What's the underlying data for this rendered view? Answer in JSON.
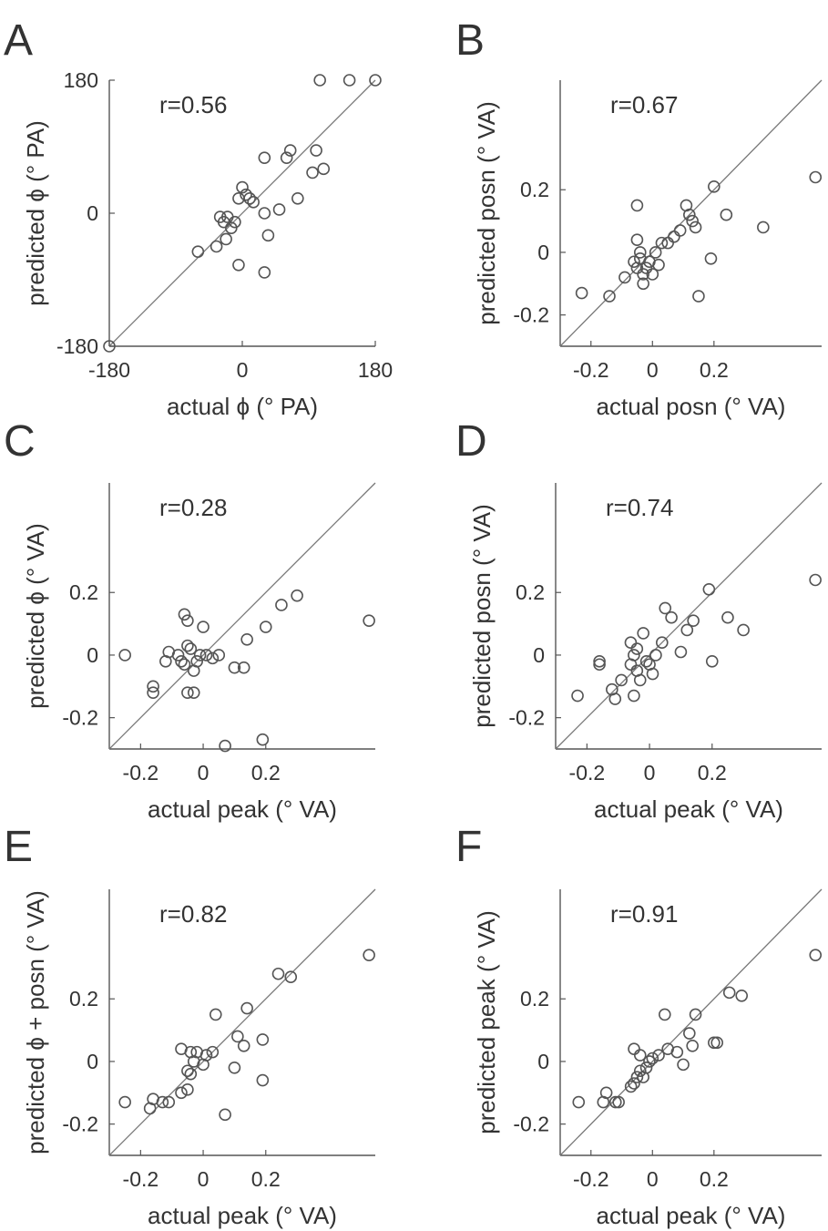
{
  "chart_data": [
    {
      "type": "scatter",
      "panel_label": "A",
      "xlabel": "actual ϕ (° PA)",
      "ylabel": "predicted ϕ (° PA)",
      "annotation": "r=0.56",
      "xlim": [
        -180,
        180
      ],
      "ylim": [
        -180,
        180
      ],
      "xticks": [
        -180,
        0,
        180
      ],
      "xtick_labels": [
        "-180",
        "0",
        "180"
      ],
      "yticks": [
        -180,
        0,
        180
      ],
      "ytick_labels": [
        "-180",
        "0",
        "180"
      ],
      "identity_line": true,
      "points": [
        [
          -180,
          -180
        ],
        [
          -60,
          -52
        ],
        [
          -35,
          -45
        ],
        [
          -22,
          -35
        ],
        [
          -30,
          -5
        ],
        [
          -20,
          -5
        ],
        [
          -25,
          -12
        ],
        [
          -15,
          -20
        ],
        [
          -10,
          -12
        ],
        [
          -5,
          -70
        ],
        [
          -5,
          20
        ],
        [
          0,
          35
        ],
        [
          5,
          25
        ],
        [
          10,
          20
        ],
        [
          15,
          15
        ],
        [
          30,
          0
        ],
        [
          30,
          75
        ],
        [
          35,
          -30
        ],
        [
          30,
          -80
        ],
        [
          50,
          5
        ],
        [
          60,
          75
        ],
        [
          65,
          85
        ],
        [
          75,
          20
        ],
        [
          95,
          55
        ],
        [
          100,
          85
        ],
        [
          105,
          180
        ],
        [
          110,
          60
        ],
        [
          145,
          180
        ],
        [
          180,
          180
        ]
      ]
    },
    {
      "type": "scatter",
      "panel_label": "B",
      "xlabel": "actual posn (° VA)",
      "ylabel": "predicted posn (° VA)",
      "annotation": "r=0.67",
      "xlim": [
        -0.3,
        0.55
      ],
      "ylim": [
        -0.3,
        0.55
      ],
      "xticks": [
        -0.2,
        0,
        0.2
      ],
      "xtick_labels": [
        "-0.2",
        "0",
        "0.2"
      ],
      "yticks": [
        -0.2,
        0,
        0.2
      ],
      "ytick_labels": [
        "-0.2",
        "0",
        "0.2"
      ],
      "identity_line": true,
      "points": [
        [
          -0.23,
          -0.13
        ],
        [
          -0.14,
          -0.14
        ],
        [
          -0.09,
          -0.08
        ],
        [
          -0.06,
          -0.03
        ],
        [
          -0.05,
          -0.05
        ],
        [
          -0.05,
          0.04
        ],
        [
          -0.05,
          0.15
        ],
        [
          -0.04,
          0.0
        ],
        [
          -0.04,
          -0.02
        ],
        [
          -0.03,
          -0.1
        ],
        [
          -0.03,
          -0.07
        ],
        [
          -0.02,
          -0.05
        ],
        [
          -0.01,
          -0.03
        ],
        [
          0.0,
          -0.07
        ],
        [
          0.02,
          -0.04
        ],
        [
          0.01,
          0.0
        ],
        [
          0.03,
          0.03
        ],
        [
          0.05,
          0.03
        ],
        [
          0.07,
          0.05
        ],
        [
          0.09,
          0.07
        ],
        [
          0.11,
          0.15
        ],
        [
          0.12,
          0.12
        ],
        [
          0.13,
          0.1
        ],
        [
          0.14,
          0.08
        ],
        [
          0.15,
          -0.14
        ],
        [
          0.19,
          -0.02
        ],
        [
          0.2,
          0.21
        ],
        [
          0.24,
          0.12
        ],
        [
          0.36,
          0.08
        ],
        [
          0.53,
          0.24
        ]
      ]
    },
    {
      "type": "scatter",
      "panel_label": "C",
      "xlabel": "actual peak (° VA)",
      "ylabel": "predicted ϕ (° VA)",
      "annotation": "r=0.28",
      "xlim": [
        -0.3,
        0.55
      ],
      "ylim": [
        -0.3,
        0.55
      ],
      "xticks": [
        -0.2,
        0,
        0.2
      ],
      "xtick_labels": [
        "-0.2",
        "0",
        "0.2"
      ],
      "yticks": [
        -0.2,
        0,
        0.2
      ],
      "ytick_labels": [
        "-0.2",
        "0",
        "0.2"
      ],
      "identity_line": true,
      "points": [
        [
          -0.25,
          0.0
        ],
        [
          -0.16,
          -0.1
        ],
        [
          -0.16,
          -0.12
        ],
        [
          -0.12,
          -0.02
        ],
        [
          -0.11,
          0.01
        ],
        [
          -0.08,
          0.0
        ],
        [
          -0.07,
          -0.02
        ],
        [
          -0.06,
          -0.03
        ],
        [
          -0.06,
          0.13
        ],
        [
          -0.05,
          0.11
        ],
        [
          -0.05,
          0.03
        ],
        [
          -0.05,
          -0.12
        ],
        [
          -0.04,
          0.02
        ],
        [
          -0.03,
          -0.12
        ],
        [
          -0.03,
          -0.05
        ],
        [
          -0.02,
          -0.02
        ],
        [
          -0.01,
          0.0
        ],
        [
          0.0,
          0.09
        ],
        [
          0.01,
          0.0
        ],
        [
          0.03,
          -0.01
        ],
        [
          0.05,
          0.0
        ],
        [
          0.07,
          -0.29
        ],
        [
          0.1,
          -0.04
        ],
        [
          0.13,
          -0.04
        ],
        [
          0.14,
          0.05
        ],
        [
          0.19,
          -0.27
        ],
        [
          0.2,
          0.09
        ],
        [
          0.25,
          0.16
        ],
        [
          0.3,
          0.19
        ],
        [
          0.53,
          0.11
        ]
      ]
    },
    {
      "type": "scatter",
      "panel_label": "D",
      "xlabel": "actual peak (° VA)",
      "ylabel": "predicted posn (° VA)",
      "annotation": "r=0.74",
      "xlim": [
        -0.3,
        0.55
      ],
      "ylim": [
        -0.3,
        0.55
      ],
      "xticks": [
        -0.2,
        0,
        0.2
      ],
      "xtick_labels": [
        "-0.2",
        "0",
        "0.2"
      ],
      "yticks": [
        -0.2,
        0,
        0.2
      ],
      "ytick_labels": [
        "-0.2",
        "0",
        "0.2"
      ],
      "identity_line": true,
      "points": [
        [
          -0.23,
          -0.13
        ],
        [
          -0.16,
          -0.03
        ],
        [
          -0.16,
          -0.02
        ],
        [
          -0.12,
          -0.11
        ],
        [
          -0.11,
          -0.14
        ],
        [
          -0.09,
          -0.08
        ],
        [
          -0.06,
          0.04
        ],
        [
          -0.06,
          -0.03
        ],
        [
          -0.05,
          0.0
        ],
        [
          -0.05,
          -0.13
        ],
        [
          -0.04,
          0.02
        ],
        [
          -0.04,
          -0.05
        ],
        [
          -0.03,
          -0.08
        ],
        [
          -0.02,
          0.07
        ],
        [
          -0.01,
          -0.02
        ],
        [
          0.0,
          -0.03
        ],
        [
          0.01,
          -0.06
        ],
        [
          0.02,
          0.0
        ],
        [
          0.04,
          0.04
        ],
        [
          0.05,
          0.15
        ],
        [
          0.07,
          0.12
        ],
        [
          0.1,
          0.01
        ],
        [
          0.12,
          0.08
        ],
        [
          0.14,
          0.11
        ],
        [
          0.19,
          0.21
        ],
        [
          0.2,
          -0.02
        ],
        [
          0.25,
          0.12
        ],
        [
          0.3,
          0.08
        ],
        [
          0.53,
          0.24
        ]
      ]
    },
    {
      "type": "scatter",
      "panel_label": "E",
      "xlabel": "actual peak (° VA)",
      "ylabel": "predicted ϕ + posn (° VA)",
      "annotation": "r=0.82",
      "xlim": [
        -0.3,
        0.55
      ],
      "ylim": [
        -0.3,
        0.55
      ],
      "xticks": [
        -0.2,
        0,
        0.2
      ],
      "xtick_labels": [
        "-0.2",
        "0",
        "0.2"
      ],
      "yticks": [
        -0.2,
        0,
        0.2
      ],
      "ytick_labels": [
        "-0.2",
        "0",
        "0.2"
      ],
      "identity_line": true,
      "points": [
        [
          -0.25,
          -0.13
        ],
        [
          -0.17,
          -0.15
        ],
        [
          -0.16,
          -0.12
        ],
        [
          -0.13,
          -0.13
        ],
        [
          -0.11,
          -0.13
        ],
        [
          -0.07,
          -0.1
        ],
        [
          -0.07,
          0.04
        ],
        [
          -0.05,
          -0.09
        ],
        [
          -0.05,
          -0.03
        ],
        [
          -0.04,
          0.03
        ],
        [
          -0.04,
          -0.04
        ],
        [
          -0.03,
          0.0
        ],
        [
          -0.02,
          0.03
        ],
        [
          0.0,
          -0.01
        ],
        [
          0.01,
          0.02
        ],
        [
          0.03,
          0.03
        ],
        [
          0.04,
          0.15
        ],
        [
          0.07,
          -0.17
        ],
        [
          0.1,
          -0.02
        ],
        [
          0.11,
          0.08
        ],
        [
          0.13,
          0.05
        ],
        [
          0.14,
          0.17
        ],
        [
          0.19,
          0.07
        ],
        [
          0.19,
          -0.06
        ],
        [
          0.24,
          0.28
        ],
        [
          0.28,
          0.27
        ],
        [
          0.53,
          0.34
        ]
      ]
    },
    {
      "type": "scatter",
      "panel_label": "F",
      "xlabel": "actual peak (° VA)",
      "ylabel": "predicted peak (° VA)",
      "annotation": "r=0.91",
      "xlim": [
        -0.3,
        0.55
      ],
      "ylim": [
        -0.3,
        0.55
      ],
      "xticks": [
        -0.2,
        0,
        0.2
      ],
      "xtick_labels": [
        "-0.2",
        "0",
        "0.2"
      ],
      "yticks": [
        -0.2,
        0,
        0.2
      ],
      "ytick_labels": [
        "-0.2",
        "0",
        "0.2"
      ],
      "identity_line": true,
      "points": [
        [
          -0.24,
          -0.13
        ],
        [
          -0.16,
          -0.13
        ],
        [
          -0.15,
          -0.1
        ],
        [
          -0.12,
          -0.13
        ],
        [
          -0.11,
          -0.13
        ],
        [
          -0.07,
          -0.08
        ],
        [
          -0.06,
          0.04
        ],
        [
          -0.06,
          -0.07
        ],
        [
          -0.05,
          -0.05
        ],
        [
          -0.04,
          -0.03
        ],
        [
          -0.04,
          0.02
        ],
        [
          -0.03,
          -0.05
        ],
        [
          -0.02,
          -0.02
        ],
        [
          -0.01,
          0.0
        ],
        [
          0.0,
          0.01
        ],
        [
          0.02,
          0.02
        ],
        [
          0.04,
          0.15
        ],
        [
          0.05,
          0.04
        ],
        [
          0.08,
          0.03
        ],
        [
          0.1,
          -0.01
        ],
        [
          0.12,
          0.09
        ],
        [
          0.13,
          0.05
        ],
        [
          0.14,
          0.15
        ],
        [
          0.2,
          0.06
        ],
        [
          0.21,
          0.06
        ],
        [
          0.25,
          0.22
        ],
        [
          0.29,
          0.21
        ],
        [
          0.53,
          0.34
        ]
      ]
    }
  ]
}
